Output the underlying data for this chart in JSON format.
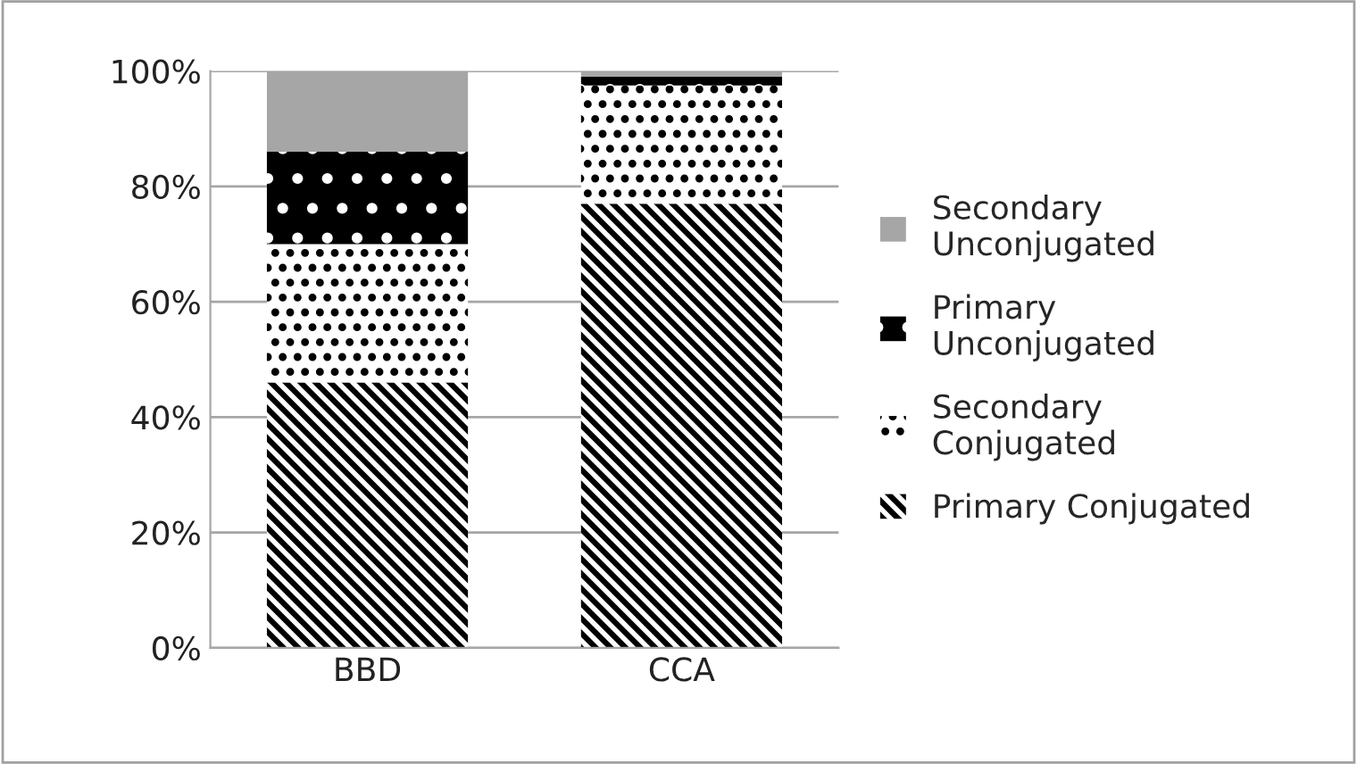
{
  "chart_data": {
    "type": "bar",
    "stacked": true,
    "categories": [
      "BBD",
      "CCA"
    ],
    "series": [
      {
        "name": "Primary Conjugated",
        "color": "#000000",
        "values": [
          46,
          77
        ]
      },
      {
        "name": "Secondary Conjugated",
        "color": "#ffffff",
        "values": [
          24,
          20.5
        ]
      },
      {
        "name": "Primary Unconjugated",
        "color": "#000000",
        "values": [
          16,
          1.5
        ]
      },
      {
        "name": "Secondary Unconjugated",
        "color": "#a6a6a6",
        "values": [
          14,
          1
        ]
      }
    ],
    "ylim": [
      0,
      100
    ],
    "yticks": [
      {
        "value": 0,
        "label": "0%"
      },
      {
        "value": 20,
        "label": "20%"
      },
      {
        "value": 40,
        "label": "40%"
      },
      {
        "value": 60,
        "label": "60%"
      },
      {
        "value": 80,
        "label": "80%"
      },
      {
        "value": 100,
        "label": "100%"
      }
    ],
    "grid": "y",
    "legend": "right"
  }
}
